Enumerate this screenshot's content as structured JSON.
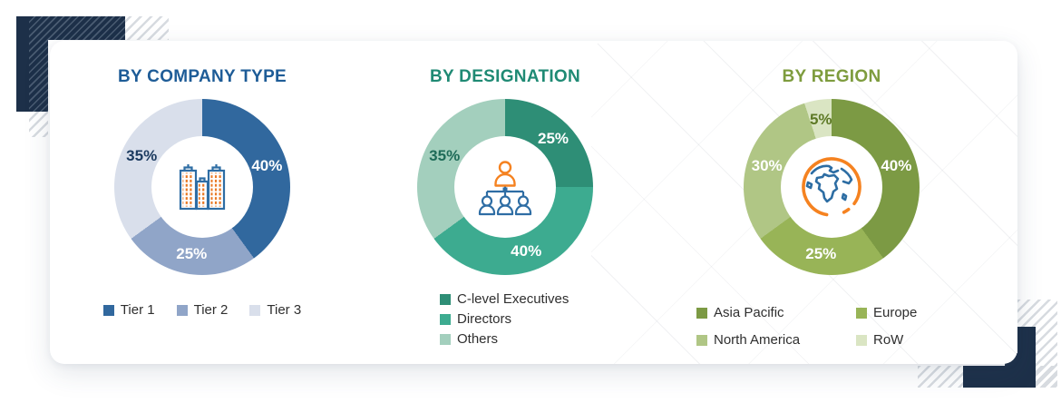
{
  "decor": {
    "navy_color": "#1d3049",
    "hatch_light_color": "#d7dbe0"
  },
  "icons": {
    "buildings": "buildings-icon",
    "org_chart": "org-chart-icon",
    "globe": "globe-icon"
  },
  "chart_data": [
    {
      "type": "pie",
      "title": "BY COMPANY TYPE",
      "title_color": "#1e5c97",
      "donut_hole_ratio": 0.58,
      "legend_position": "bottom-row",
      "icon": "buildings-icon",
      "slices": [
        {
          "label": "Tier 1",
          "value": 40,
          "value_label": "40%",
          "color": "#31689e",
          "value_label_color": "#ffffff"
        },
        {
          "label": "Tier 2",
          "value": 25,
          "value_label": "25%",
          "color": "#90a5c8",
          "value_label_color": "#ffffff"
        },
        {
          "label": "Tier 3",
          "value": 35,
          "value_label": "35%",
          "color": "#d9dfeb",
          "value_label_color": "#1b3a5f"
        }
      ]
    },
    {
      "type": "pie",
      "title": "BY DESIGNATION",
      "title_color": "#1f8a74",
      "donut_hole_ratio": 0.58,
      "legend_position": "bottom-column",
      "icon": "org-chart-icon",
      "slices": [
        {
          "label": "C-level Executives",
          "value": 25,
          "value_label": "25%",
          "color": "#2e8e76",
          "value_label_color": "#ffffff"
        },
        {
          "label": "Directors",
          "value": 40,
          "value_label": "40%",
          "color": "#3dab90",
          "value_label_color": "#ffffff"
        },
        {
          "label": "Others",
          "value": 35,
          "value_label": "35%",
          "color": "#a3cfbd",
          "value_label_color": "#1e6b58"
        }
      ]
    },
    {
      "type": "pie",
      "title": "BY REGION",
      "title_color": "#7e9c3e",
      "donut_hole_ratio": 0.58,
      "legend_position": "bottom-grid-2col",
      "icon": "globe-icon",
      "slices": [
        {
          "label": "Asia Pacific",
          "value": 40,
          "value_label": "40%",
          "color": "#7c9a44",
          "value_label_color": "#ffffff"
        },
        {
          "label": "Europe",
          "value": 25,
          "value_label": "25%",
          "color": "#98b457",
          "value_label_color": "#ffffff"
        },
        {
          "label": "North America",
          "value": 30,
          "value_label": "30%",
          "color": "#b0c685",
          "value_label_color": "#ffffff"
        },
        {
          "label": "RoW",
          "value": 5,
          "value_label": "5%",
          "color": "#dae5c3",
          "value_label_color": "#5e7a26"
        }
      ]
    }
  ]
}
